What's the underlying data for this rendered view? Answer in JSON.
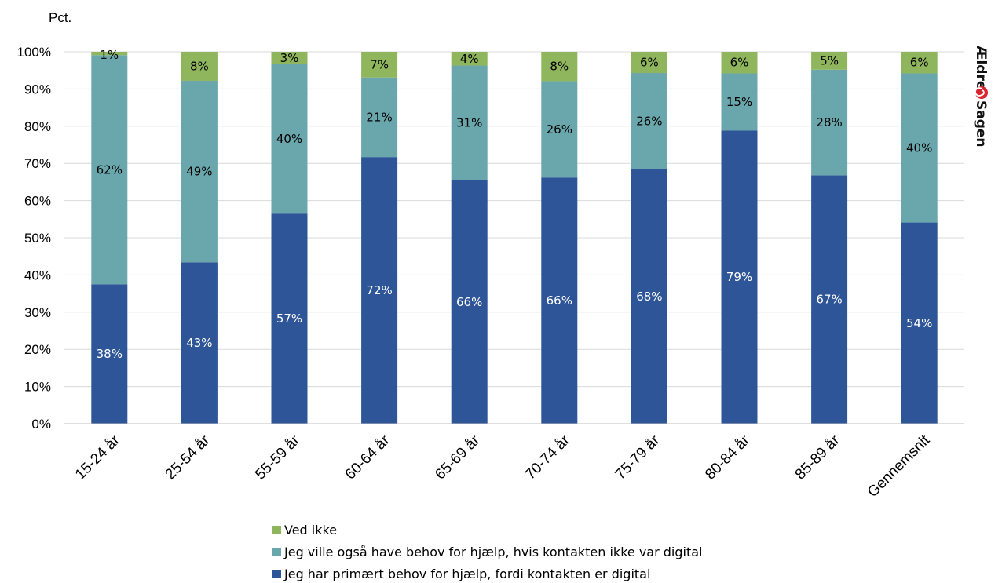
{
  "chart_data": {
    "type": "bar",
    "stacked": true,
    "ylabel": "Pct.",
    "ylim": [
      0,
      100
    ],
    "yticks": [
      "0%",
      "10%",
      "20%",
      "30%",
      "40%",
      "50%",
      "60%",
      "70%",
      "80%",
      "90%",
      "100%"
    ],
    "categories": [
      "15-24 år",
      "25-54 år",
      "55-59 år",
      "60-64 år",
      "65-69 år",
      "70-74 år",
      "75-79 år",
      "80-84 år",
      "85-89 år",
      "Gennemsnit"
    ],
    "series": [
      {
        "name": "Jeg har primært behov for hjælp, fordi kontakten er digital",
        "color": "#2e5597",
        "label_color": "#ffffff",
        "values": [
          37.5,
          43.4,
          56.5,
          71.7,
          65.5,
          66.2,
          68.4,
          78.8,
          66.8,
          54.1
        ],
        "labels": [
          "38%",
          "43%",
          "57%",
          "72%",
          "66%",
          "66%",
          "68%",
          "79%",
          "67%",
          "54%"
        ]
      },
      {
        "name": "Jeg ville også have behov for hjælp, hvis kontakten ikke var digital",
        "color": "#6aa7ad",
        "label_color": "#000000",
        "values": [
          61.6,
          48.8,
          40.2,
          21.4,
          30.8,
          25.9,
          25.9,
          15.4,
          28.4,
          40.1
        ],
        "labels": [
          "62%",
          "49%",
          "40%",
          "21%",
          "31%",
          "26%",
          "26%",
          "15%",
          "28%",
          "40%"
        ]
      },
      {
        "name": "Ved ikke",
        "color": "#8fb55d",
        "label_color": "#000000",
        "values": [
          0.9,
          7.8,
          3.3,
          6.9,
          3.7,
          7.9,
          5.7,
          5.8,
          4.8,
          5.8
        ],
        "labels": [
          "1%",
          "8%",
          "3%",
          "7%",
          "4%",
          "8%",
          "6%",
          "6%",
          "5%",
          "6%"
        ]
      }
    ],
    "legend_order": [
      2,
      1,
      0
    ],
    "legend_position": "bottom",
    "grid": true
  },
  "brand": {
    "logo_text_top": "Ældre",
    "logo_text_bottom": "Sagen",
    "accent_color": "#d9262e"
  }
}
